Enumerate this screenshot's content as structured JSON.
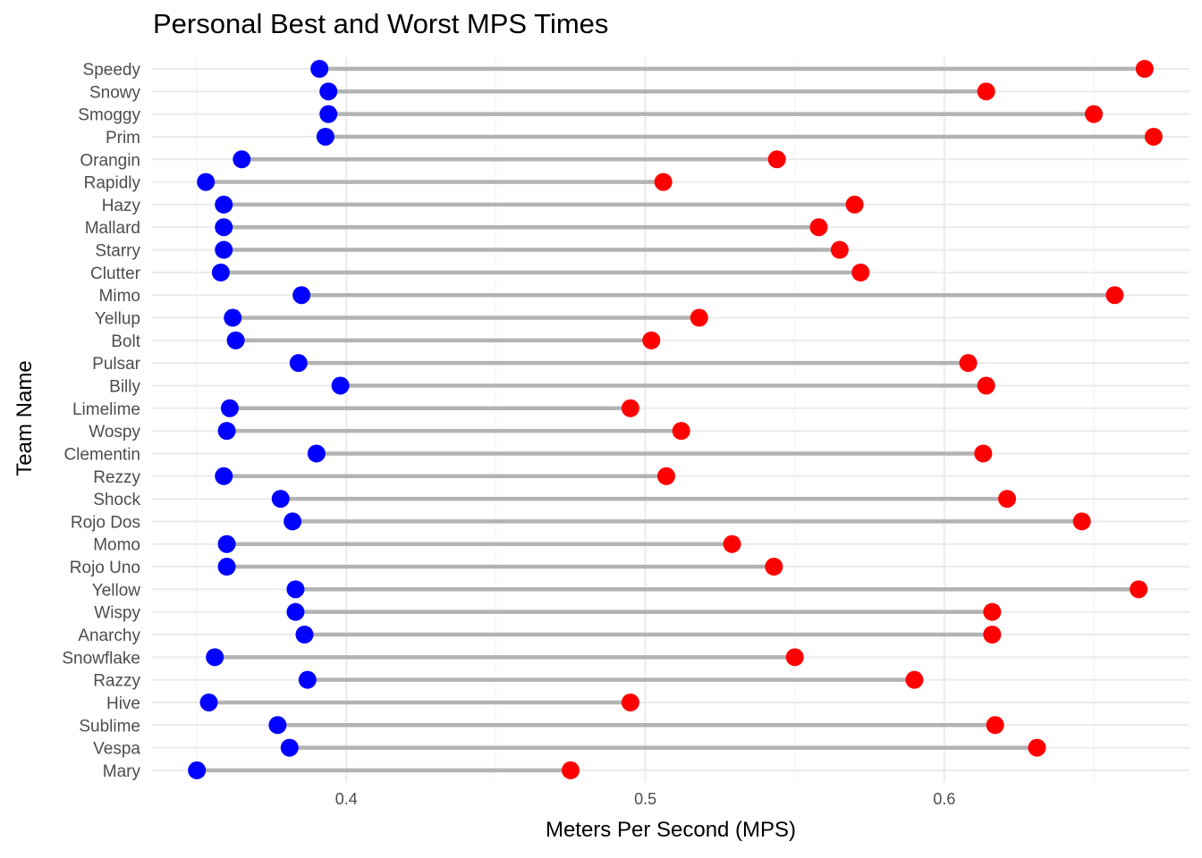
{
  "chart_data": {
    "type": "dumbbell",
    "title": "Personal Best and Worst MPS Times",
    "xlabel": "Meters Per Second (MPS)",
    "ylabel": "Team Name",
    "xlim": [
      0.335,
      0.682
    ],
    "x_ticks": [
      0.4,
      0.5,
      0.6
    ],
    "x_tick_labels": [
      "0.4",
      "0.5",
      "0.6"
    ],
    "grid": true,
    "legend": "none",
    "colors": {
      "min": "#0000ff",
      "max": "#ff0000",
      "segment": "#b3b3b3",
      "grid_major": "#ebebeb",
      "grid_minor": "#f4f4f4"
    },
    "series": [
      {
        "values_key": "min"
      },
      {
        "values_key": "max"
      }
    ],
    "categories": [
      "Speedy",
      "Snowy",
      "Smoggy",
      "Prim",
      "Orangin",
      "Rapidly",
      "Hazy",
      "Mallard",
      "Starry",
      "Clutter",
      "Mimo",
      "Yellup",
      "Bolt",
      "Pulsar",
      "Billy",
      "Limelime",
      "Wospy",
      "Clementin",
      "Rezzy",
      "Shock",
      "Rojo Dos",
      "Momo",
      "Rojo Uno",
      "Yellow",
      "Wispy",
      "Anarchy",
      "Snowflake",
      "Razzy",
      "Hive",
      "Sublime",
      "Vespa",
      "Mary"
    ],
    "min": [
      0.391,
      0.394,
      0.394,
      0.393,
      0.365,
      0.353,
      0.359,
      0.359,
      0.359,
      0.358,
      0.385,
      0.362,
      0.363,
      0.384,
      0.398,
      0.361,
      0.36,
      0.39,
      0.359,
      0.378,
      0.382,
      0.36,
      0.36,
      0.383,
      0.383,
      0.386,
      0.356,
      0.387,
      0.354,
      0.377,
      0.381,
      0.35
    ],
    "max": [
      0.667,
      0.614,
      0.65,
      0.67,
      0.544,
      0.506,
      0.57,
      0.558,
      0.565,
      0.572,
      0.657,
      0.518,
      0.502,
      0.608,
      0.614,
      0.495,
      0.512,
      0.613,
      0.507,
      0.621,
      0.646,
      0.529,
      0.543,
      0.665,
      0.616,
      0.616,
      0.55,
      0.59,
      0.495,
      0.617,
      0.631,
      0.475
    ]
  }
}
